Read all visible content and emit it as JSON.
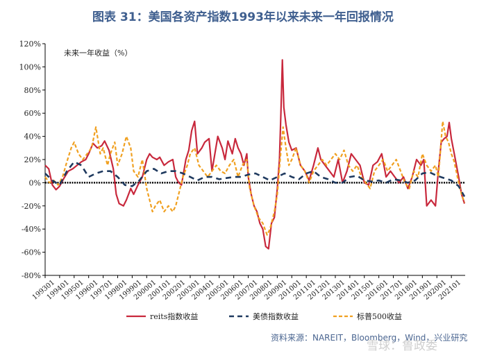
{
  "title": "图表 31：美国各资产指数1993年以来未来一年回报情况",
  "source": "资料来源：NAREIT，Bloomberg，Wind，兴业研究",
  "watermark": "雪球：鲁政委",
  "chart_data": {
    "type": "line",
    "title": "图表 31：美国各资产指数1993年以来未来一年回报情况",
    "annotation": "未来一年收益（%）",
    "ylabel": "未来一年收益（%）",
    "xlabel": "",
    "ylim": [
      -80,
      120
    ],
    "yticks": [
      "120%",
      "100%",
      "80%",
      "60%",
      "40%",
      "20%",
      "0%",
      "-20%",
      "-40%",
      "-60%",
      "-80%"
    ],
    "xticks": [
      "199301",
      "199401",
      "199501",
      "199601",
      "199701",
      "199801",
      "199901",
      "200001",
      "200101",
      "200201",
      "200301",
      "200401",
      "200501",
      "200601",
      "200701",
      "200801",
      "200901",
      "201001",
      "201101",
      "201201",
      "201301",
      "201401",
      "201501",
      "201601",
      "201701",
      "201801",
      "201901",
      "202001",
      "202101"
    ],
    "x_start": 1993.0,
    "x_end": 2021.95,
    "series": [
      {
        "name": "reits指数收益",
        "color": "#c8283c",
        "style": "solid",
        "points": [
          [
            1993.0,
            15
          ],
          [
            1993.25,
            12
          ],
          [
            1993.5,
            -2
          ],
          [
            1993.75,
            -6
          ],
          [
            1994.0,
            -3
          ],
          [
            1994.3,
            4
          ],
          [
            1994.6,
            10
          ],
          [
            1994.9,
            12
          ],
          [
            1995.2,
            15
          ],
          [
            1995.5,
            18
          ],
          [
            1995.8,
            20
          ],
          [
            1996.0,
            25
          ],
          [
            1996.3,
            34
          ],
          [
            1996.6,
            30
          ],
          [
            1996.9,
            32
          ],
          [
            1997.1,
            36
          ],
          [
            1997.4,
            28
          ],
          [
            1997.7,
            12
          ],
          [
            1997.9,
            -10
          ],
          [
            1998.1,
            -18
          ],
          [
            1998.4,
            -20
          ],
          [
            1998.6,
            -15
          ],
          [
            1998.9,
            -5
          ],
          [
            1999.1,
            -10
          ],
          [
            1999.4,
            -2
          ],
          [
            1999.7,
            5
          ],
          [
            2000.0,
            20
          ],
          [
            2000.2,
            25
          ],
          [
            2000.4,
            22
          ],
          [
            2000.7,
            20
          ],
          [
            2000.9,
            22
          ],
          [
            2001.2,
            15
          ],
          [
            2001.5,
            18
          ],
          [
            2001.8,
            20
          ],
          [
            2002.0,
            5
          ],
          [
            2002.2,
            0
          ],
          [
            2002.4,
            -2
          ],
          [
            2002.7,
            20
          ],
          [
            2002.9,
            28
          ],
          [
            2003.1,
            45
          ],
          [
            2003.3,
            53
          ],
          [
            2003.5,
            25
          ],
          [
            2003.8,
            30
          ],
          [
            2004.0,
            35
          ],
          [
            2004.3,
            38
          ],
          [
            2004.5,
            10
          ],
          [
            2004.7,
            25
          ],
          [
            2004.9,
            40
          ],
          [
            2005.2,
            30
          ],
          [
            2005.4,
            20
          ],
          [
            2005.6,
            36
          ],
          [
            2005.9,
            25
          ],
          [
            2006.1,
            38
          ],
          [
            2006.3,
            30
          ],
          [
            2006.5,
            25
          ],
          [
            2006.7,
            15
          ],
          [
            2006.9,
            25
          ],
          [
            2007.0,
            5
          ],
          [
            2007.2,
            -10
          ],
          [
            2007.4,
            -20
          ],
          [
            2007.6,
            -25
          ],
          [
            2007.8,
            -35
          ],
          [
            2008.0,
            -40
          ],
          [
            2008.2,
            -55
          ],
          [
            2008.4,
            -57
          ],
          [
            2008.6,
            -35
          ],
          [
            2008.8,
            -30
          ],
          [
            2009.0,
            -5
          ],
          [
            2009.15,
            20
          ],
          [
            2009.25,
            60
          ],
          [
            2009.35,
            106
          ],
          [
            2009.45,
            65
          ],
          [
            2009.6,
            50
          ],
          [
            2009.8,
            35
          ],
          [
            2010.0,
            28
          ],
          [
            2010.3,
            30
          ],
          [
            2010.6,
            15
          ],
          [
            2010.9,
            10
          ],
          [
            2011.2,
            2
          ],
          [
            2011.5,
            15
          ],
          [
            2011.8,
            30
          ],
          [
            2012.0,
            20
          ],
          [
            2012.3,
            15
          ],
          [
            2012.6,
            10
          ],
          [
            2012.9,
            5
          ],
          [
            2013.2,
            20
          ],
          [
            2013.5,
            0
          ],
          [
            2013.8,
            10
          ],
          [
            2014.1,
            25
          ],
          [
            2014.4,
            20
          ],
          [
            2014.7,
            15
          ],
          [
            2015.0,
            0
          ],
          [
            2015.3,
            -2
          ],
          [
            2015.6,
            15
          ],
          [
            2015.9,
            18
          ],
          [
            2016.2,
            25
          ],
          [
            2016.5,
            5
          ],
          [
            2016.8,
            10
          ],
          [
            2017.1,
            5
          ],
          [
            2017.4,
            0
          ],
          [
            2017.7,
            5
          ],
          [
            2018.0,
            -5
          ],
          [
            2018.3,
            5
          ],
          [
            2018.6,
            20
          ],
          [
            2018.9,
            15
          ],
          [
            2019.1,
            20
          ],
          [
            2019.3,
            -20
          ],
          [
            2019.6,
            -15
          ],
          [
            2019.9,
            -20
          ],
          [
            2020.1,
            10
          ],
          [
            2020.3,
            35
          ],
          [
            2020.5,
            38
          ],
          [
            2020.7,
            40
          ],
          [
            2020.85,
            52
          ],
          [
            2021.0,
            38
          ],
          [
            2021.2,
            25
          ],
          [
            2021.5,
            5
          ],
          [
            2021.7,
            -10
          ],
          [
            2021.9,
            -18
          ]
        ]
      },
      {
        "name": "美债指数收益",
        "color": "#1f3a5f",
        "style": "dashed",
        "points": [
          [
            1993.0,
            8
          ],
          [
            1993.5,
            2
          ],
          [
            1994.0,
            -2
          ],
          [
            1994.5,
            10
          ],
          [
            1995.0,
            18
          ],
          [
            1995.5,
            15
          ],
          [
            1996.0,
            5
          ],
          [
            1996.5,
            8
          ],
          [
            1997.0,
            10
          ],
          [
            1997.5,
            10
          ],
          [
            1998.0,
            5
          ],
          [
            1998.5,
            -2
          ],
          [
            1999.0,
            -3
          ],
          [
            1999.5,
            2
          ],
          [
            2000.0,
            10
          ],
          [
            2000.5,
            12
          ],
          [
            2001.0,
            8
          ],
          [
            2001.5,
            10
          ],
          [
            2002.0,
            10
          ],
          [
            2002.5,
            8
          ],
          [
            2003.0,
            5
          ],
          [
            2003.5,
            2
          ],
          [
            2004.0,
            5
          ],
          [
            2004.5,
            5
          ],
          [
            2005.0,
            3
          ],
          [
            2005.5,
            4
          ],
          [
            2006.0,
            5
          ],
          [
            2006.5,
            5
          ],
          [
            2007.0,
            7
          ],
          [
            2007.5,
            8
          ],
          [
            2008.0,
            5
          ],
          [
            2008.5,
            2
          ],
          [
            2009.0,
            5
          ],
          [
            2009.5,
            8
          ],
          [
            2010.0,
            5
          ],
          [
            2010.5,
            3
          ],
          [
            2011.0,
            8
          ],
          [
            2011.5,
            10
          ],
          [
            2012.0,
            5
          ],
          [
            2012.5,
            3
          ],
          [
            2013.0,
            0
          ],
          [
            2013.5,
            0
          ],
          [
            2014.0,
            5
          ],
          [
            2014.5,
            6
          ],
          [
            2015.0,
            2
          ],
          [
            2015.5,
            1
          ],
          [
            2016.0,
            2
          ],
          [
            2016.5,
            0
          ],
          [
            2017.0,
            3
          ],
          [
            2017.5,
            2
          ],
          [
            2018.0,
            0
          ],
          [
            2018.5,
            2
          ],
          [
            2019.0,
            8
          ],
          [
            2019.5,
            9
          ],
          [
            2020.0,
            6
          ],
          [
            2020.5,
            4
          ],
          [
            2021.0,
            2
          ],
          [
            2021.5,
            -3
          ],
          [
            2021.9,
            -12
          ]
        ]
      },
      {
        "name": "标普500收益",
        "color": "#f0a020",
        "style": "dashed",
        "points": [
          [
            1993.0,
            5
          ],
          [
            1993.3,
            0
          ],
          [
            1993.6,
            2
          ],
          [
            1993.9,
            -2
          ],
          [
            1994.2,
            5
          ],
          [
            1994.5,
            18
          ],
          [
            1994.8,
            30
          ],
          [
            1995.0,
            35
          ],
          [
            1995.3,
            25
          ],
          [
            1995.6,
            20
          ],
          [
            1995.9,
            25
          ],
          [
            1996.2,
            30
          ],
          [
            1996.5,
            48
          ],
          [
            1996.8,
            25
          ],
          [
            1997.0,
            30
          ],
          [
            1997.3,
            15
          ],
          [
            1997.5,
            25
          ],
          [
            1997.8,
            35
          ],
          [
            1998.0,
            15
          ],
          [
            1998.3,
            25
          ],
          [
            1998.6,
            40
          ],
          [
            1998.9,
            30
          ],
          [
            1999.1,
            10
          ],
          [
            1999.4,
            5
          ],
          [
            1999.7,
            20
          ],
          [
            2000.0,
            -5
          ],
          [
            2000.2,
            -15
          ],
          [
            2000.4,
            -25
          ],
          [
            2000.6,
            -20
          ],
          [
            2000.9,
            -15
          ],
          [
            2001.2,
            -25
          ],
          [
            2001.5,
            -20
          ],
          [
            2001.8,
            -25
          ],
          [
            2002.0,
            -20
          ],
          [
            2002.2,
            -10
          ],
          [
            2002.5,
            5
          ],
          [
            2002.8,
            15
          ],
          [
            2003.0,
            25
          ],
          [
            2003.3,
            30
          ],
          [
            2003.6,
            15
          ],
          [
            2003.9,
            10
          ],
          [
            2004.2,
            5
          ],
          [
            2004.5,
            10
          ],
          [
            2004.8,
            15
          ],
          [
            2005.1,
            10
          ],
          [
            2005.4,
            8
          ],
          [
            2005.7,
            15
          ],
          [
            2006.0,
            20
          ],
          [
            2006.3,
            5
          ],
          [
            2006.6,
            15
          ],
          [
            2006.9,
            20
          ],
          [
            2007.1,
            -5
          ],
          [
            2007.4,
            -20
          ],
          [
            2007.7,
            -30
          ],
          [
            2008.0,
            -35
          ],
          [
            2008.3,
            -45
          ],
          [
            2008.5,
            -40
          ],
          [
            2008.8,
            -25
          ],
          [
            2009.0,
            -10
          ],
          [
            2009.2,
            20
          ],
          [
            2009.4,
            48
          ],
          [
            2009.6,
            30
          ],
          [
            2009.8,
            15
          ],
          [
            2010.0,
            20
          ],
          [
            2010.3,
            30
          ],
          [
            2010.6,
            15
          ],
          [
            2010.9,
            10
          ],
          [
            2011.2,
            0
          ],
          [
            2011.5,
            10
          ],
          [
            2011.8,
            15
          ],
          [
            2012.1,
            20
          ],
          [
            2012.4,
            15
          ],
          [
            2012.7,
            20
          ],
          [
            2013.0,
            25
          ],
          [
            2013.3,
            20
          ],
          [
            2013.6,
            28
          ],
          [
            2013.9,
            15
          ],
          [
            2014.2,
            10
          ],
          [
            2014.5,
            15
          ],
          [
            2014.8,
            5
          ],
          [
            2015.1,
            0
          ],
          [
            2015.4,
            -5
          ],
          [
            2015.7,
            10
          ],
          [
            2016.0,
            15
          ],
          [
            2016.3,
            20
          ],
          [
            2016.6,
            10
          ],
          [
            2016.9,
            15
          ],
          [
            2017.2,
            20
          ],
          [
            2017.5,
            10
          ],
          [
            2017.8,
            0
          ],
          [
            2018.1,
            -5
          ],
          [
            2018.4,
            10
          ],
          [
            2018.7,
            5
          ],
          [
            2019.0,
            25
          ],
          [
            2019.3,
            15
          ],
          [
            2019.6,
            10
          ],
          [
            2019.9,
            15
          ],
          [
            2020.1,
            5
          ],
          [
            2020.2,
            20
          ],
          [
            2020.4,
            53
          ],
          [
            2020.6,
            40
          ],
          [
            2020.8,
            35
          ],
          [
            2021.0,
            25
          ],
          [
            2021.2,
            18
          ],
          [
            2021.5,
            0
          ],
          [
            2021.7,
            -10
          ],
          [
            2021.9,
            -17
          ]
        ]
      }
    ]
  }
}
